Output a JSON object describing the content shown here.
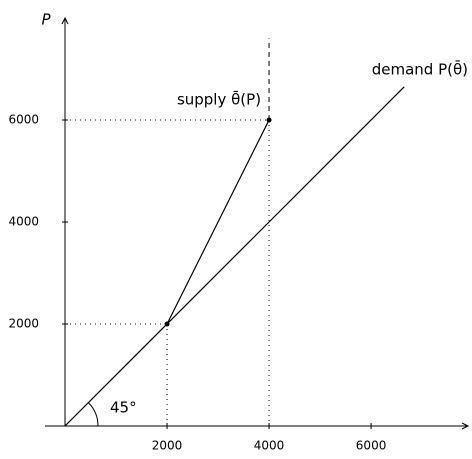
{
  "chart_data": {
    "type": "line",
    "ylabel": "P",
    "xlim": [
      0,
      7900
    ],
    "ylim": [
      0,
      8000
    ],
    "xticks": [
      2000,
      4000,
      6000
    ],
    "yticks": [
      2000,
      4000,
      6000
    ],
    "grid": false,
    "guides": true,
    "series": [
      {
        "name": "demand P(θ̄)",
        "color": "#000000",
        "x": [
          0,
          6650
        ],
        "values": [
          0,
          6650
        ],
        "markers": false
      },
      {
        "name": "supply θ̄(P)",
        "color": "#000000",
        "x": [
          2000,
          4000
        ],
        "values": [
          2000,
          6000
        ],
        "markers": true
      }
    ],
    "vertical_line": {
      "x": 4000,
      "y": [
        6000,
        7600
      ],
      "style": "dashed"
    },
    "angle_label": "45°"
  }
}
